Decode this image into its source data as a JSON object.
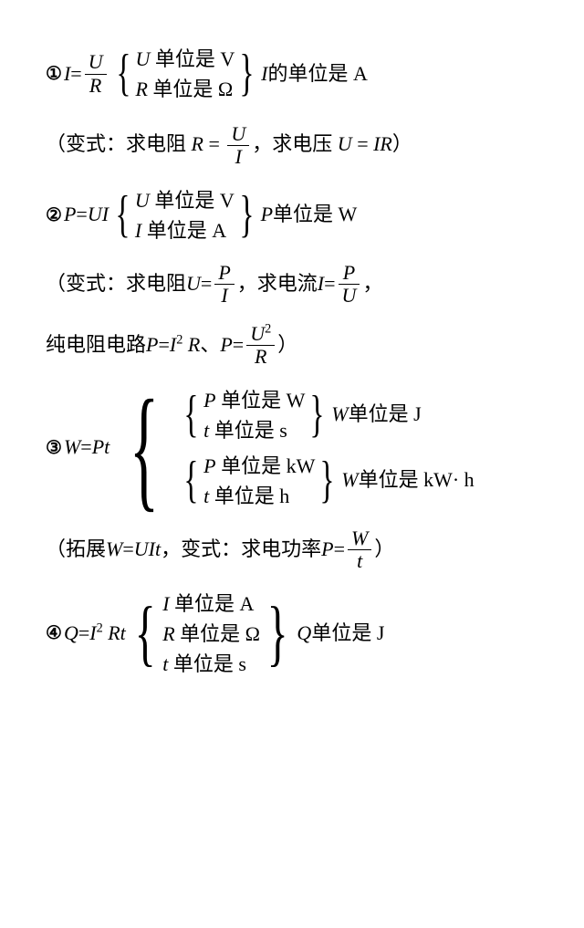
{
  "labels": {
    "c1": "①",
    "c2": "②",
    "c3": "③",
    "c4": "④"
  },
  "item1": {
    "lhs_var": "I",
    "eq": " = ",
    "frac_num": "U",
    "frac_den": "R",
    "unit_row1_var": "U",
    "unit_row1_txt": " 单位是 V",
    "unit_row2_var": "R",
    "unit_row2_txt": " 单位是 Ω",
    "result_var": "I",
    "result_txt": " 的单位是 A",
    "variant_prefix": "（变式：求电阻 ",
    "var_R": "R",
    "eq2": " = ",
    "frac2_num": "U",
    "frac2_den": "I",
    "mid_txt": "，求电压 ",
    "var_U": "U",
    "eq3": " = ",
    "rhs3": "IR",
    "close": "）"
  },
  "item2": {
    "lhs_var": "P",
    "eq": " = ",
    "rhs": "UI",
    "unit_row1_var": "U",
    "unit_row1_txt": " 单位是 V",
    "unit_row2_var": "I",
    "unit_row2_txt": " 单位是 A",
    "result_var": "P",
    "result_txt": " 单位是 W",
    "variant_prefix": "（变式：求电阻 ",
    "var_U": "U",
    "eq2": " = ",
    "frac2_num": "P",
    "frac2_den": "I",
    "mid_txt": "，求电流 ",
    "var_I": "I",
    "eq3": " = ",
    "frac3_num": "P",
    "frac3_den": "U",
    "comma": "，",
    "line3_prefix": "纯电阻电路 ",
    "var_P": "P",
    "eq4": " = ",
    "rhs4a": "I",
    "rhs4b": " R",
    "sep": "、",
    "var_P2": "P",
    "eq5": " = ",
    "frac5_num_a": "U",
    "frac5_den": "R",
    "close": "）"
  },
  "item3": {
    "lhs_var": "W",
    "eq": " = ",
    "rhs": "Pt",
    "g1_row1_var": "P",
    "g1_row1_txt": " 单位是 W",
    "g1_row2_var": "t",
    "g1_row2_txt": " 单位是 s",
    "g1_result_var": "W",
    "g1_result_txt": " 单位是 J",
    "g2_row1_var": "P",
    "g2_row1_txt": " 单位是 kW",
    "g2_row2_var": "t",
    "g2_row2_txt": " 单位是 h",
    "g2_result_var": "W",
    "g2_result_txt": " 单位是 kW· h",
    "ext_prefix": "（拓展 ",
    "ext_var": "W",
    "ext_eq": " = ",
    "ext_rhs": "UIt",
    "ext_mid": "，变式：求电功率 ",
    "ext_var2": "P",
    "ext_eq2": " = ",
    "ext_frac_num": "W",
    "ext_frac_den": "t",
    "close": "）"
  },
  "item4": {
    "lhs_var": "Q",
    "eq": " = ",
    "rhs_a": "I",
    "rhs_b": " Rt",
    "row1_var": "I",
    "row1_txt": " 单位是 A",
    "row2_var": "R",
    "row2_txt": " 单位是 Ω",
    "row3_var": "t",
    "row3_txt": " 单位是 s",
    "result_var": "Q",
    "result_txt": " 单位是 J"
  }
}
